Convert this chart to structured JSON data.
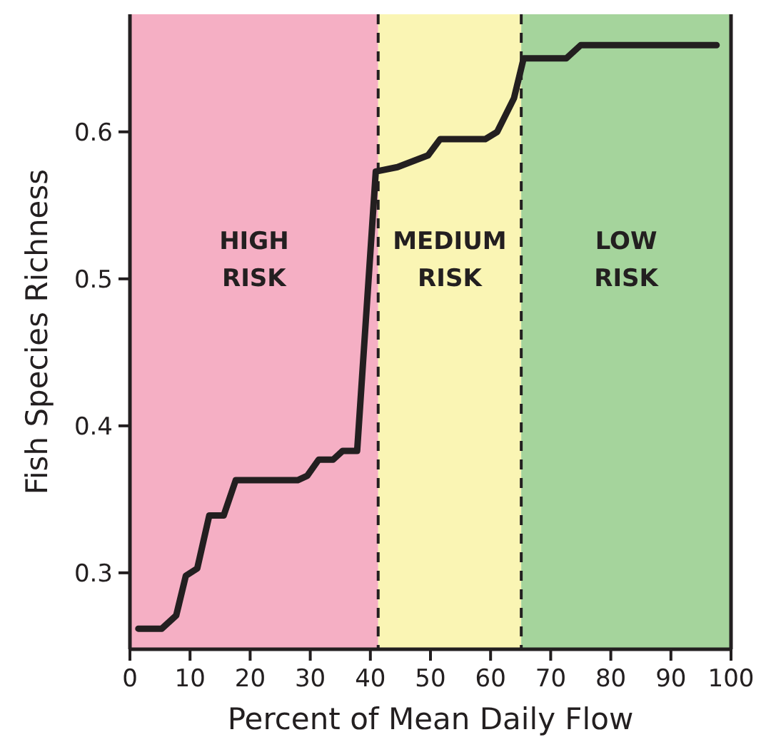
{
  "chart_data": {
    "type": "line",
    "xlabel": "Percent of Mean Daily Flow",
    "ylabel": "Fish Species Richness",
    "xlim": [
      0,
      100
    ],
    "xticks": [
      0,
      10,
      20,
      30,
      40,
      50,
      60,
      70,
      80,
      90,
      100
    ],
    "ylim": [
      0.248,
      0.68
    ],
    "yticks": [
      0.3,
      0.4,
      0.5,
      0.6
    ],
    "series": [
      {
        "color": "#231f20",
        "x": [
          1.4,
          5.3,
          7.7,
          9.3,
          11.2,
          13.2,
          15.6,
          17.6,
          27.9,
          29.5,
          31.4,
          33.8,
          35.4,
          37.8,
          40.9,
          44.5,
          49.6,
          51.6,
          59.1,
          61.1,
          63.9,
          65.5,
          72.6,
          75.0,
          97.6
        ],
        "values": [
          0.262,
          0.262,
          0.271,
          0.298,
          0.303,
          0.339,
          0.339,
          0.363,
          0.363,
          0.366,
          0.377,
          0.377,
          0.383,
          0.383,
          0.573,
          0.576,
          0.584,
          0.595,
          0.595,
          0.6,
          0.623,
          0.65,
          0.65,
          0.659,
          0.659
        ]
      }
    ],
    "bands": [
      {
        "axis": "x",
        "from": 0,
        "to": 41.3,
        "label": "HIGH\nRISK",
        "color": "#f5afc4"
      },
      {
        "axis": "x",
        "from": 41.3,
        "to": 65.1,
        "label": "MEDIUM\nRISK",
        "color": "#faf5b4"
      },
      {
        "axis": "x",
        "from": 65.1,
        "to": 100,
        "label": "LOW\nRISK",
        "color": "#a5d49c"
      }
    ],
    "ref_lines": [
      {
        "axis": "x",
        "value": 41.3,
        "line_style": "dashed",
        "color": "#231f20"
      },
      {
        "axis": "x",
        "value": 65.1,
        "line_style": "dashed",
        "color": "#231f20"
      }
    ],
    "marker": "none",
    "line_style": "solid",
    "grid": false
  }
}
